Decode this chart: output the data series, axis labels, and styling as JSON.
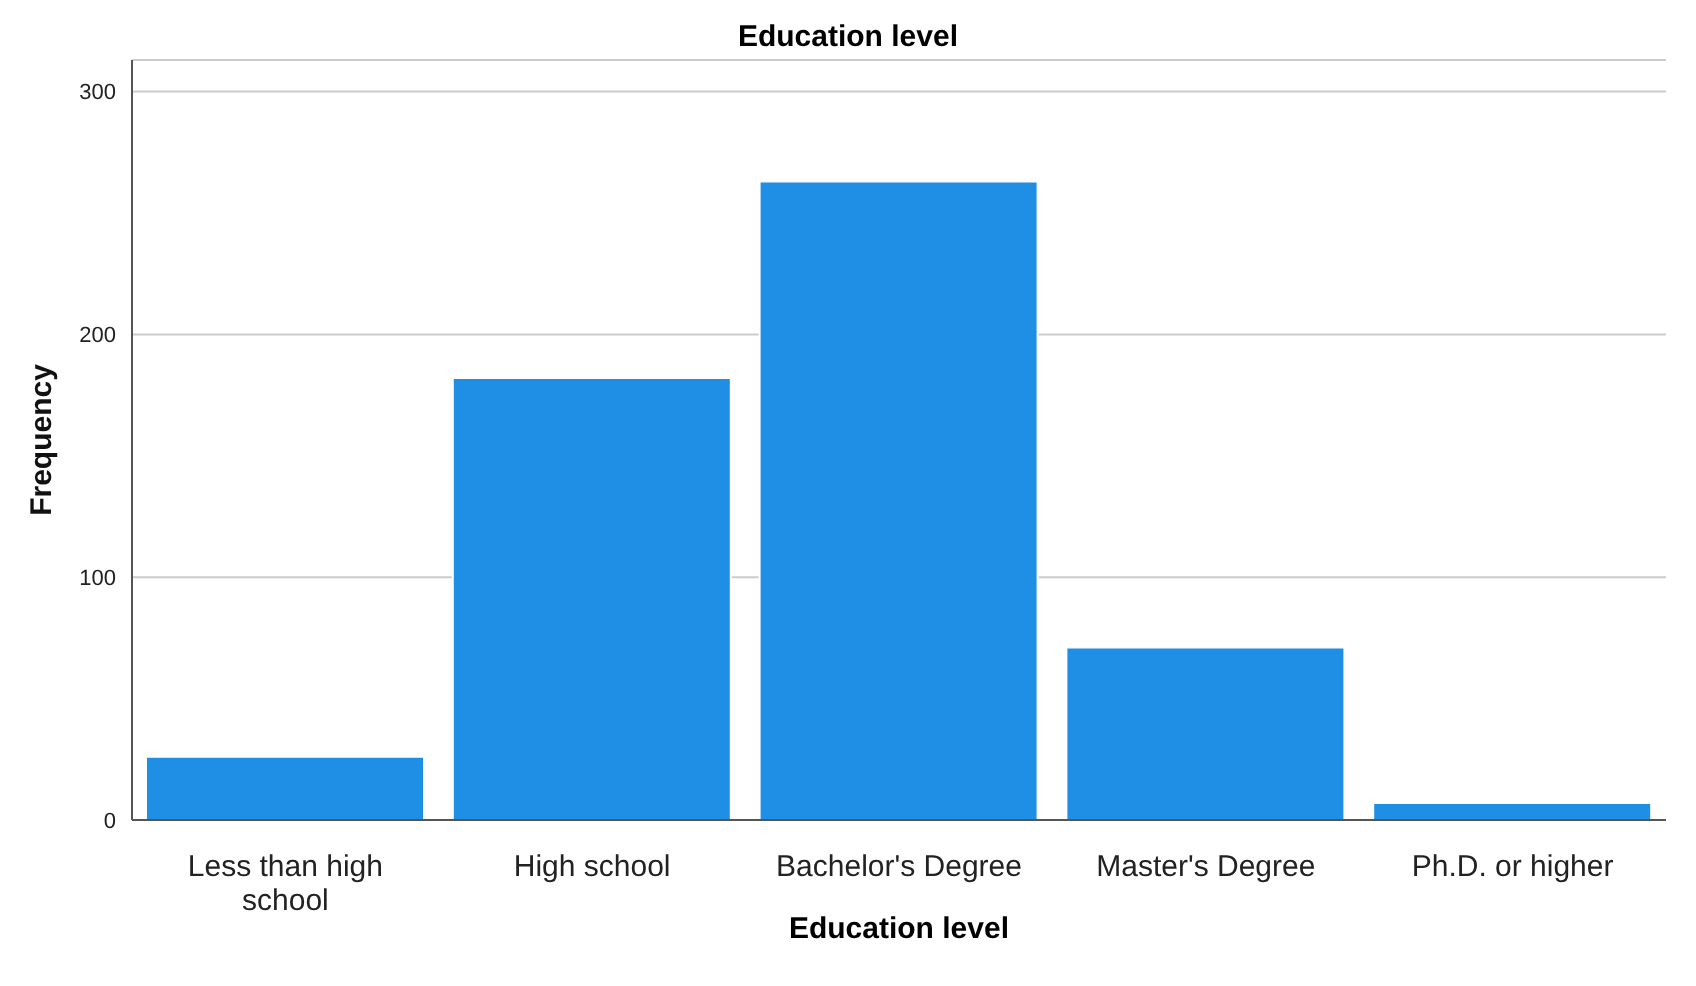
{
  "chart_data": {
    "type": "bar",
    "title": "Education level",
    "xlabel": "Education level",
    "ylabel": "Frequency",
    "categories": [
      "Less than high school",
      "High school",
      "Bachelor's Degree",
      "Master's Degree",
      "Ph.D. or higher"
    ],
    "values": [
      26,
      182,
      263,
      71,
      7
    ],
    "color": "#1f8fe5",
    "ylim": [
      0,
      313
    ],
    "yticks": [
      0,
      100,
      200,
      300
    ],
    "grid": "y"
  }
}
